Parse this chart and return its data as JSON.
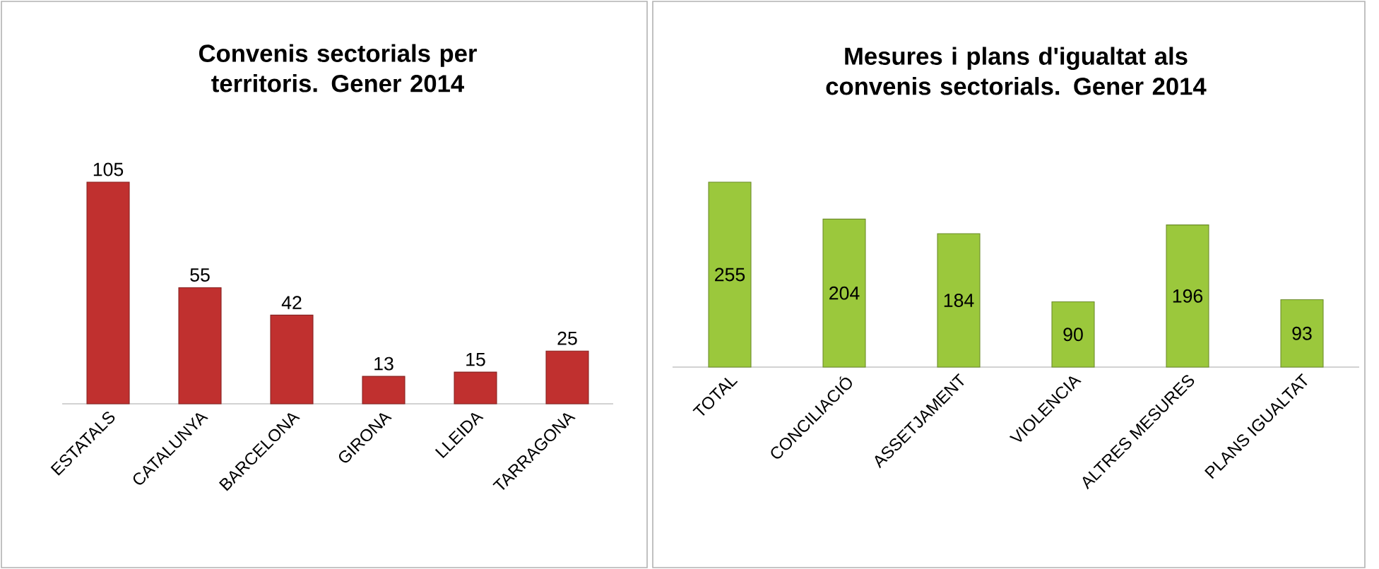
{
  "chart_data": [
    {
      "type": "bar",
      "title": "Convenis sectorials per territoris. Gener 2014",
      "categories": [
        "ESTATALS",
        "CATALUNYA",
        "BARCELONA",
        "GIRONA",
        "LLEIDA",
        "TARRAGONA"
      ],
      "values": [
        105,
        55,
        42,
        13,
        15,
        25
      ],
      "color": "#c0302f",
      "data_labels": true
    },
    {
      "type": "bar",
      "title": "Mesures i plans d'igualtat als convenis sectorials. Gener 2014",
      "categories": [
        "TOTAL",
        "CONCILIACIÓ",
        "ASSETJAMENT",
        "VIOLENCIA",
        "ALTRES MESURES",
        "PLANS IGUALTAT"
      ],
      "values": [
        255,
        204,
        184,
        90,
        196,
        93
      ],
      "color": "#9bc83c",
      "data_labels": true
    }
  ]
}
